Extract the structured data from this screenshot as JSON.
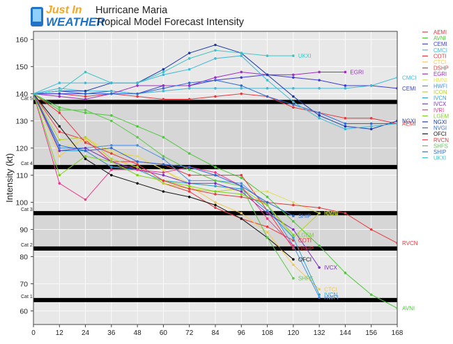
{
  "logo": {
    "line1": "Just In",
    "line2": "WEATHER"
  },
  "chart_data": {
    "type": "line",
    "title": "Hurricane Maria",
    "subtitle": "Tropical Model Forecast Intensity",
    "xlabel": "",
    "ylabel": "Intensity (kt)",
    "xlim": [
      0,
      168
    ],
    "ylim": [
      55,
      163
    ],
    "xticks": [
      0,
      12,
      24,
      36,
      48,
      60,
      72,
      84,
      96,
      108,
      120,
      132,
      144,
      156,
      168
    ],
    "yticks": [
      60,
      70,
      80,
      90,
      100,
      110,
      120,
      130,
      140,
      150,
      160
    ],
    "legend_position": "right",
    "category_bands": [
      {
        "label": "Cat 1",
        "lower": 64,
        "upper": 83,
        "color": "#e8e8e8"
      },
      {
        "label": "Cat 2",
        "lower": 83,
        "upper": 96,
        "color": "#d6d6d6"
      },
      {
        "label": "Cat 3",
        "lower": 96,
        "upper": 113,
        "color": "#e8e8e8"
      },
      {
        "label": "Cat 4",
        "lower": 113,
        "upper": 137,
        "color": "#d6d6d6"
      },
      {
        "label": "Cat 5",
        "lower": 137,
        "upper": 163,
        "color": "#e8e8e8"
      }
    ],
    "series": [
      {
        "name": "AEMI",
        "color": "#e8383d",
        "end_label": "AEMI",
        "x": [
          0,
          12,
          24,
          36,
          48,
          60,
          72,
          84,
          96,
          108,
          120,
          132,
          144,
          156,
          168
        ],
        "y": [
          140,
          140,
          139,
          140,
          139,
          138,
          138,
          139,
          140,
          139,
          135,
          133,
          131,
          131,
          129
        ]
      },
      {
        "name": "AVNI",
        "color": "#4dc83a",
        "end_label": "AVNI",
        "x": [
          0,
          12,
          24,
          36,
          48,
          60,
          72,
          84,
          96,
          108,
          120,
          132,
          144,
          156,
          168
        ],
        "y": [
          140,
          135,
          133,
          132,
          128,
          124,
          118,
          113,
          109,
          102,
          93,
          84,
          74,
          66,
          61
        ]
      },
      {
        "name": "CEMI",
        "color": "#3c3cd6",
        "end_label": "CEMI",
        "x": [
          0,
          12,
          24,
          36,
          48,
          60,
          72,
          84,
          96,
          108,
          120,
          132,
          144,
          156,
          168
        ],
        "y": [
          140,
          140,
          140,
          141,
          140,
          143,
          143,
          145,
          146,
          147,
          146,
          145,
          143,
          143,
          142
        ]
      },
      {
        "name": "CMCI",
        "color": "#3fb9d6",
        "end_label": "CMCI",
        "x": [
          0,
          12,
          24,
          36,
          48,
          60,
          72,
          84,
          96,
          108,
          120,
          132,
          144,
          156,
          168
        ],
        "y": [
          140,
          142,
          141,
          141,
          140,
          141,
          142,
          142,
          142,
          142,
          142,
          142,
          142,
          143,
          146
        ]
      },
      {
        "name": "COTI",
        "color": "#e8383d",
        "end_label": "COTI",
        "x": [
          0,
          12,
          24,
          36,
          48,
          60,
          72,
          84,
          96,
          108,
          120
        ],
        "y": [
          140,
          119,
          119,
          113,
          113,
          107,
          104,
          98,
          94,
          91,
          86
        ]
      },
      {
        "name": "CTCI",
        "color": "#f2c94c",
        "end_label": "CTCI",
        "x": [
          0,
          12,
          24,
          36,
          48,
          60,
          72,
          84,
          96,
          108,
          120,
          132
        ],
        "y": [
          140,
          117,
          124,
          118,
          117,
          112,
          106,
          100,
          96,
          89,
          77,
          68
        ]
      },
      {
        "name": "DSHP",
        "color": "#e8383d",
        "end_label": "DSHP",
        "x": [
          0,
          12,
          24,
          36,
          48,
          60,
          72,
          84,
          96,
          108,
          120
        ],
        "y": [
          140,
          126,
          123,
          115,
          115,
          114,
          110,
          110,
          110,
          97,
          83
        ]
      },
      {
        "name": "EGRI",
        "color": "#9b2fc4",
        "end_label": "EGRI",
        "x": [
          0,
          12,
          24,
          36,
          48,
          60,
          72,
          84,
          96,
          108,
          120,
          132,
          144
        ],
        "y": [
          140,
          139,
          138,
          140,
          143,
          143,
          143,
          146,
          148,
          147,
          147,
          148,
          148
        ]
      },
      {
        "name": "HMNI",
        "color": "#e0e060",
        "end_label": "HMNI",
        "x": [
          0,
          12,
          24,
          36,
          48,
          60,
          72,
          84,
          96,
          108,
          120,
          132
        ],
        "y": [
          140,
          120,
          123,
          119,
          117,
          112,
          107,
          106,
          104,
          104,
          100,
          96
        ]
      },
      {
        "name": "HWFI",
        "color": "#4a90e2",
        "end_label": "HWFI",
        "x": [
          0,
          12,
          24,
          36,
          48,
          60,
          72,
          84,
          96,
          108,
          120,
          132
        ],
        "y": [
          140,
          120,
          120,
          121,
          121,
          116,
          108,
          108,
          107,
          99,
          84,
          65
        ]
      },
      {
        "name": "ICON",
        "color": "#b9d22b",
        "end_label": "ICON",
        "x": [
          0,
          12,
          24,
          36,
          48,
          60,
          72,
          84,
          96,
          108,
          120,
          132
        ],
        "y": [
          140,
          123,
          124,
          116,
          113,
          107,
          105,
          104,
          105,
          99,
          87,
          96
        ]
      },
      {
        "name": "IVCN",
        "color": "#2e9fd8",
        "end_label": "IVCN",
        "x": [
          0,
          12,
          24,
          36,
          48,
          60,
          72,
          84,
          96,
          108,
          120,
          132
        ],
        "y": [
          140,
          119,
          119,
          113,
          112,
          108,
          107,
          106,
          105,
          97,
          87,
          66
        ]
      },
      {
        "name": "IVCX",
        "color": "#7b2fc4",
        "end_label": "IVCX",
        "x": [
          0,
          12,
          24,
          36,
          48,
          60,
          72,
          84,
          96,
          108,
          120,
          132
        ],
        "y": [
          140,
          119,
          120,
          115,
          112,
          110,
          107,
          107,
          104,
          96,
          90,
          76
        ]
      },
      {
        "name": "IVRI",
        "color": "#e83a8c",
        "end_label": "",
        "x": [
          0,
          12,
          24,
          36,
          48,
          60,
          72,
          84,
          96,
          108,
          120
        ],
        "y": [
          140,
          107,
          101,
          112,
          112,
          111,
          113,
          111,
          106,
          94,
          84
        ]
      },
      {
        "name": "LGEM",
        "color": "#7ed321",
        "end_label": "LGEM",
        "x": [
          0,
          12,
          24,
          36,
          48,
          60,
          72,
          84,
          96,
          108,
          120
        ],
        "y": [
          140,
          110,
          117,
          115,
          110,
          108,
          106,
          104,
          103,
          99,
          88
        ]
      },
      {
        "name": "NGXI",
        "color": "#1a3aa8",
        "end_label": "NGXI",
        "x": [
          0,
          12,
          24,
          36,
          48,
          60,
          72,
          84,
          96,
          108,
          120,
          132,
          144,
          156,
          168
        ],
        "y": [
          140,
          141,
          141,
          144,
          144,
          149,
          155,
          158,
          155,
          147,
          139,
          132,
          128,
          127,
          130
        ]
      },
      {
        "name": "NVGI",
        "color": "#2f6bd8",
        "end_label": "",
        "x": [
          0,
          12,
          24,
          36,
          48,
          60,
          72,
          84,
          96,
          108,
          120,
          132,
          144,
          156,
          168
        ],
        "y": [
          140,
          141,
          140,
          140,
          140,
          142,
          144,
          145,
          143,
          139,
          136,
          133,
          129,
          129,
          129
        ]
      },
      {
        "name": "OFCI",
        "color": "#111111",
        "end_label": "OFCI",
        "x": [
          0,
          12,
          24,
          36,
          48,
          60,
          72,
          84,
          96,
          108,
          120
        ],
        "y": [
          140,
          128,
          116,
          110,
          107,
          104,
          102,
          99,
          94,
          87,
          79
        ]
      },
      {
        "name": "RVCN",
        "color": "#e8383d",
        "end_label": "RVCN",
        "x": [
          0,
          12,
          24,
          36,
          48,
          60,
          72,
          84,
          96,
          108,
          120,
          132,
          144,
          156,
          168
        ],
        "y": [
          140,
          133,
          122,
          118,
          114,
          108,
          105,
          103,
          102,
          100,
          99,
          98,
          96,
          90,
          85
        ]
      },
      {
        "name": "SHFS",
        "color": "#5bc84a",
        "end_label": "SHFS",
        "x": [
          0,
          12,
          24,
          36,
          48,
          60,
          72,
          84,
          96,
          108,
          120
        ],
        "y": [
          140,
          134,
          134,
          130,
          124,
          117,
          112,
          108,
          106,
          87,
          72
        ]
      },
      {
        "name": "SHIP",
        "color": "#2f6bd8",
        "end_label": "SHIP",
        "x": [
          0,
          12,
          24,
          36,
          48,
          60,
          72,
          84,
          96,
          108,
          120
        ],
        "y": [
          140,
          121,
          119,
          120,
          115,
          114,
          113,
          110,
          106,
          100,
          95
        ]
      },
      {
        "name": "UKXI",
        "color": "#3fc4c4",
        "end_label": "UKXI",
        "x": [
          0,
          12,
          24,
          36,
          48,
          60,
          72,
          84,
          96,
          108,
          120
        ],
        "y": [
          140,
          141,
          148,
          144,
          144,
          148,
          153,
          156,
          155,
          154,
          154
        ]
      },
      {
        "name": "",
        "color": "#3fb9d6",
        "end_label": "",
        "x": [
          0,
          12,
          24,
          36,
          48,
          60,
          72,
          84,
          96,
          108,
          120,
          132,
          144,
          156,
          168
        ],
        "y": [
          140,
          144,
          144,
          144,
          144,
          147,
          149,
          153,
          154,
          145,
          137,
          131,
          127,
          128,
          129
        ]
      }
    ]
  }
}
